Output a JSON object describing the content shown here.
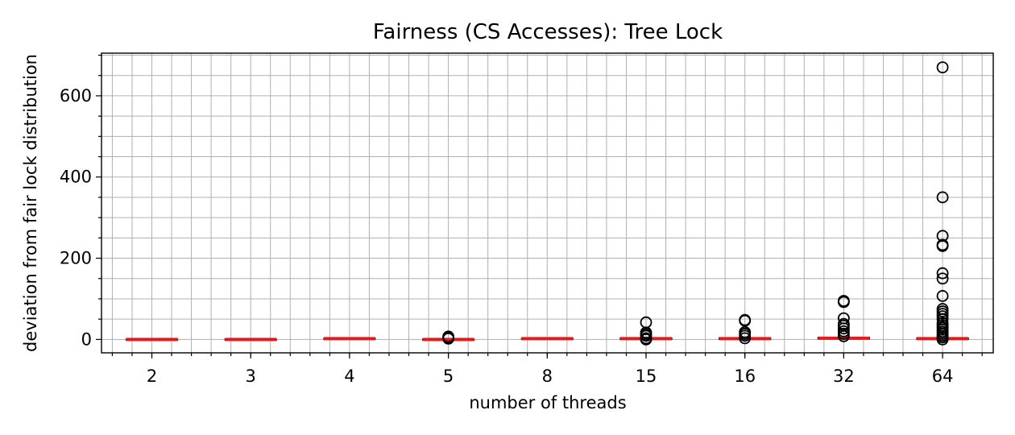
{
  "chart_data": {
    "type": "box",
    "title": "Fairness (CS Accesses): Tree Lock",
    "xlabel": "number of threads",
    "ylabel": "deviation from fair lock distribution",
    "categories": [
      "2",
      "3",
      "4",
      "5",
      "8",
      "15",
      "16",
      "32",
      "64"
    ],
    "ylim": [
      -33,
      705
    ],
    "yticks": [
      0,
      200,
      400,
      600
    ],
    "grid": true,
    "median_color": "#e41a1c",
    "boxes": [
      {
        "category": "2",
        "median": 0,
        "q1": -0.5,
        "q3": 0.5,
        "outliers": []
      },
      {
        "category": "3",
        "median": 0,
        "q1": -0.5,
        "q3": 0.5,
        "outliers": []
      },
      {
        "category": "4",
        "median": 2,
        "q1": 1.5,
        "q3": 2.5,
        "outliers": []
      },
      {
        "category": "5",
        "median": 0,
        "q1": -0.5,
        "q3": 0.5,
        "outliers": [
          2,
          4,
          7
        ]
      },
      {
        "category": "8",
        "median": 2,
        "q1": 1.5,
        "q3": 2.5,
        "outliers": []
      },
      {
        "category": "15",
        "median": 2,
        "q1": 0,
        "q3": 4,
        "outliers": [
          0,
          3,
          9,
          13,
          17,
          42
        ]
      },
      {
        "category": "16",
        "median": 2,
        "q1": 0,
        "q3": 4,
        "outliers": [
          3,
          9,
          14,
          18,
          46,
          48
        ]
      },
      {
        "category": "32",
        "median": 3,
        "q1": 1,
        "q3": 5,
        "outliers": [
          8,
          14,
          20,
          27,
          34,
          38,
          52,
          92,
          95
        ]
      },
      {
        "category": "64",
        "median": 2,
        "q1": 0,
        "q3": 4,
        "outliers": [
          0,
          5,
          9,
          14,
          19,
          24,
          29,
          34,
          40,
          50,
          57,
          63,
          69,
          75,
          107,
          150,
          163,
          230,
          233,
          255,
          350,
          670
        ]
      }
    ]
  }
}
